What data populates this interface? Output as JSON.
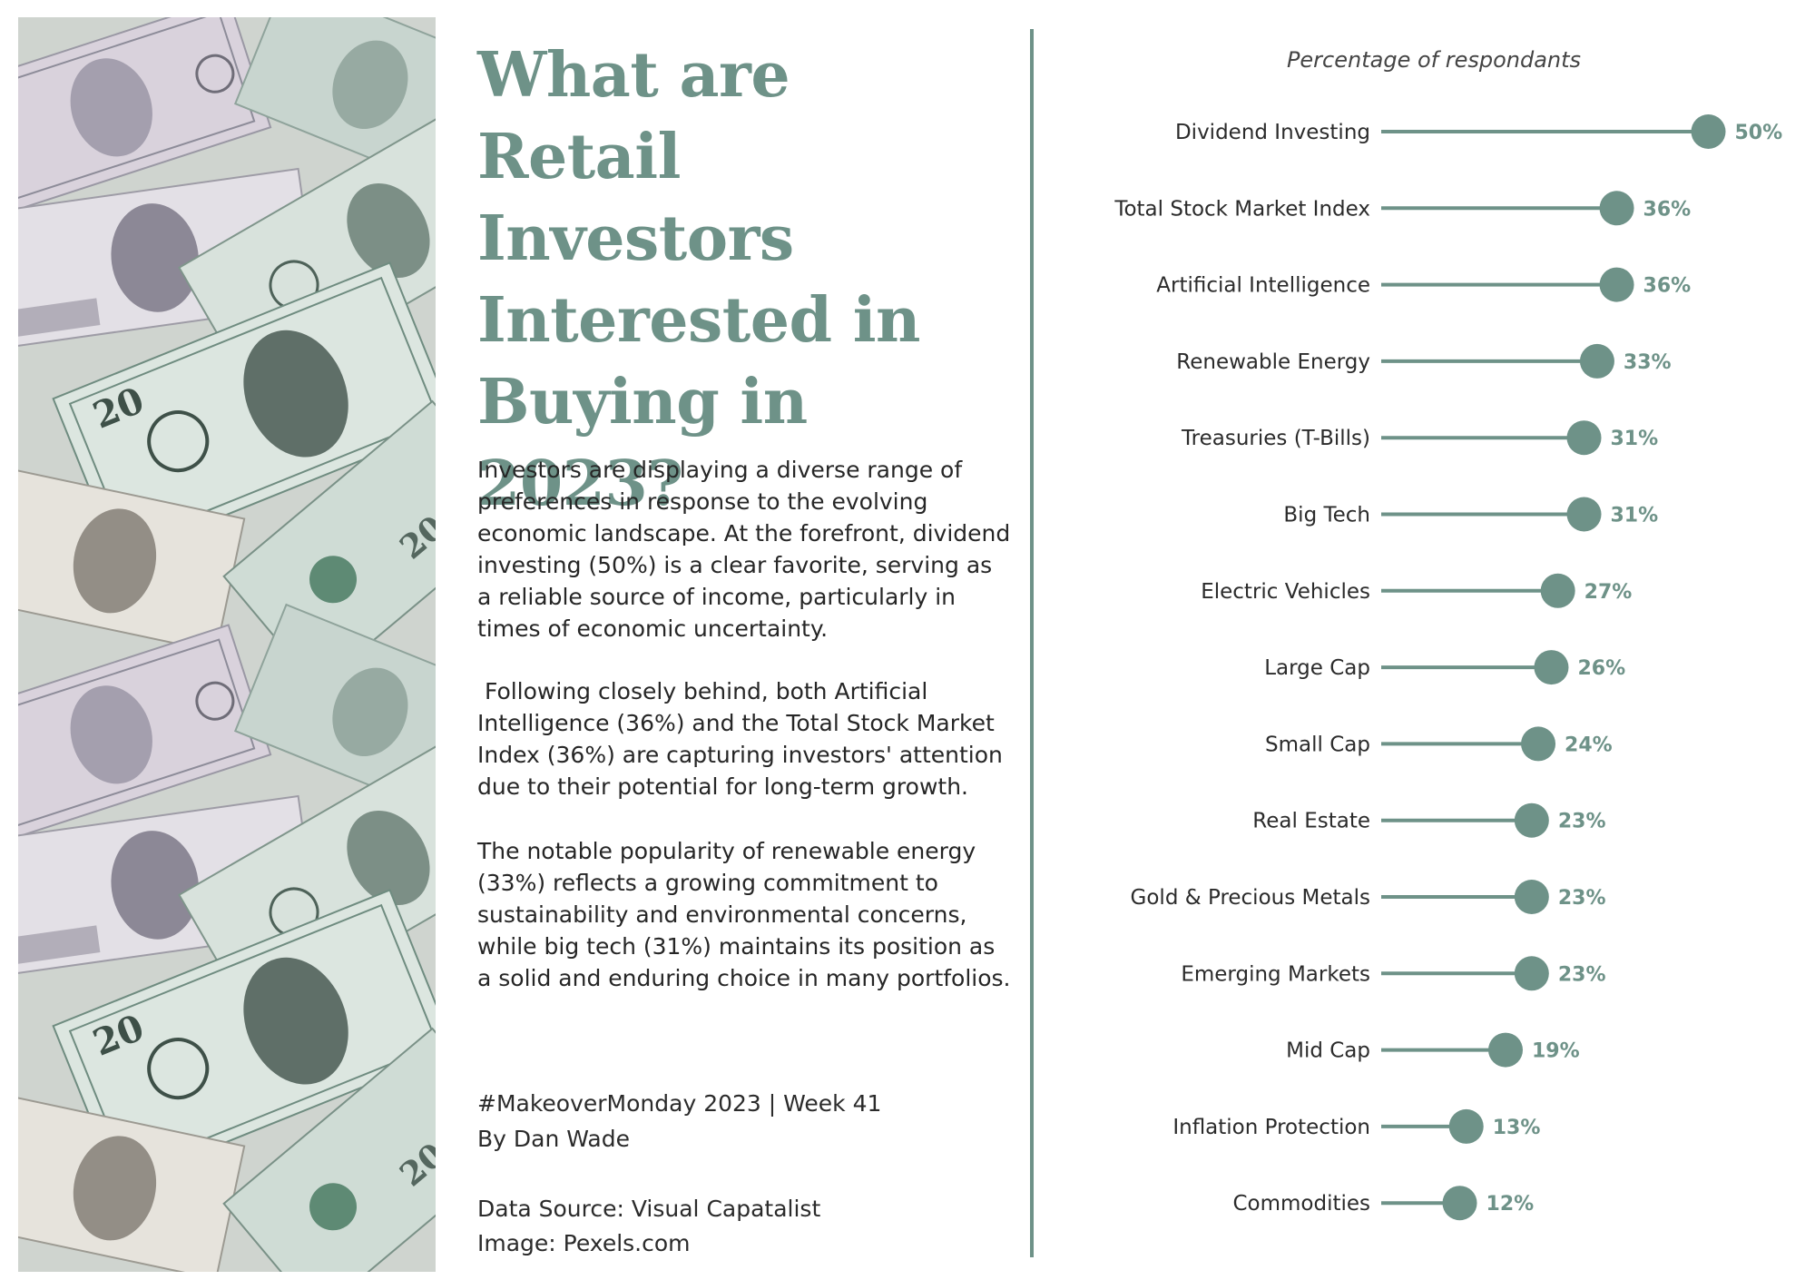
{
  "article": {
    "title": "What are Retail Investors Interested in Buying in 2023?",
    "paragraphs": [
      "Investors are displaying a diverse range of preferences in response to the evolving economic landscape. At the forefront, dividend investing (50%) is a clear favorite, serving as a reliable source of income, particularly in times of economic uncertainty.",
      " Following closely behind, both Artificial Intelligence (36%) and the Total Stock Market Index (36%) are capturing investors' attention due to their potential for long-term growth.",
      "The notable popularity of renewable energy (33%) reflects a growing commitment to sustainability and environmental concerns, while big tech (31%) maintains its position as a solid and enduring choice in many portfolios."
    ],
    "credits": {
      "hashtag": "#MakeoverMonday 2023 | Week 41",
      "author": "By Dan Wade",
      "source": "Data Source: Visual Capatalist",
      "image": "Image: Pexels.com"
    }
  },
  "colors": {
    "accent": "#6e9288",
    "text": "#2b2b2b"
  },
  "chart_data": {
    "type": "lollipop",
    "title": "Percentage of respondants",
    "xlim": [
      0,
      50
    ],
    "value_suffix": "%",
    "categories": [
      "Dividend Investing",
      "Total Stock Market Index",
      "Artificial Intelligence",
      "Renewable Energy",
      "Treasuries (T-Bills)",
      "Big Tech",
      "Electric Vehicles",
      "Large Cap",
      "Small Cap",
      "Real Estate",
      "Gold & Precious Metals",
      "Emerging Markets",
      "Mid Cap",
      "Inflation Protection",
      "Commodities"
    ],
    "values": [
      50,
      36,
      36,
      33,
      31,
      31,
      27,
      26,
      24,
      23,
      23,
      23,
      19,
      13,
      12
    ],
    "labels": [
      "50%",
      "36%",
      "36%",
      "33%",
      "31%",
      "31%",
      "27%",
      "26%",
      "24%",
      "23%",
      "23%",
      "23%",
      "19%",
      "13%",
      "12%"
    ]
  }
}
